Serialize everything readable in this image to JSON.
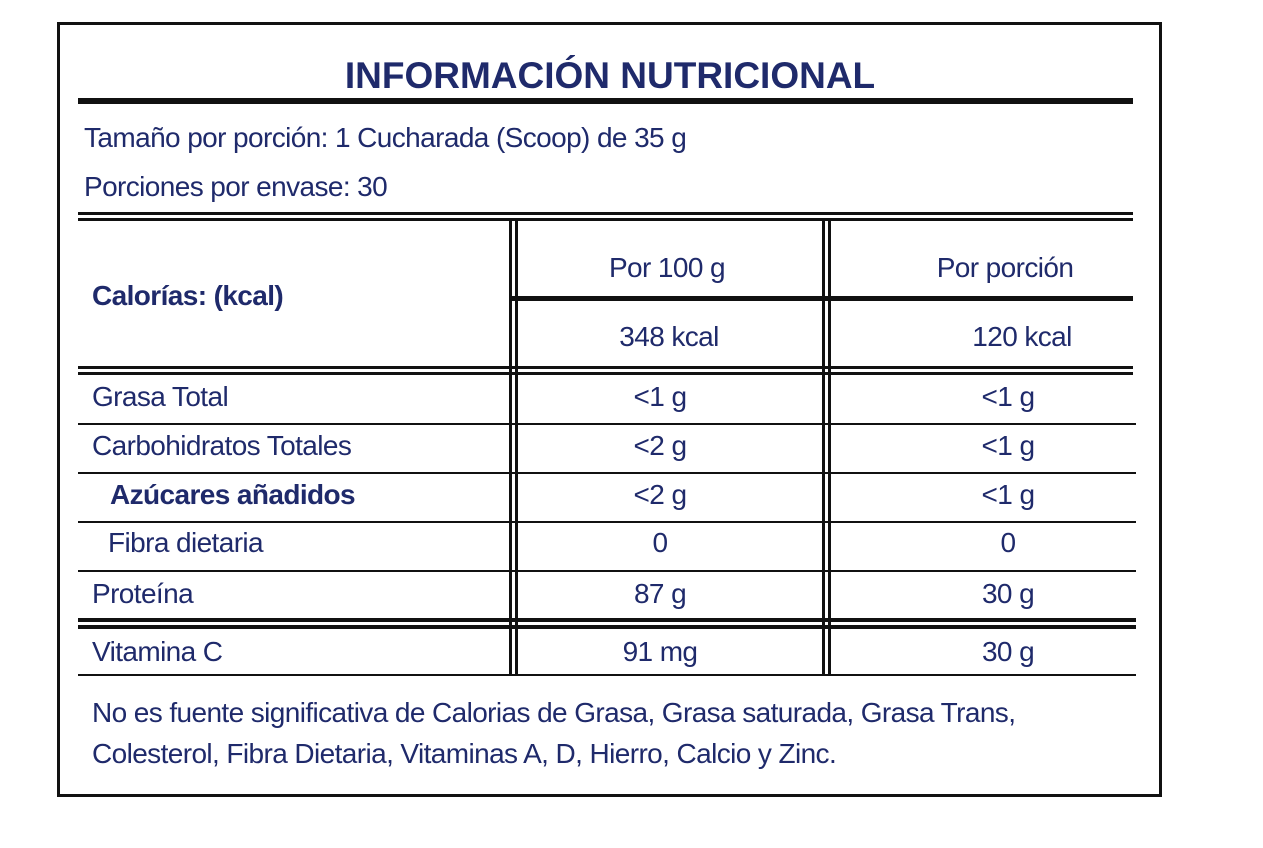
{
  "title": "INFORMACIÓN NUTRICIONAL",
  "serving": [
    "Tamaño por porción: 1 Cucharada (Scoop) de 35 g",
    "Porciones por envase: 30"
  ],
  "calories": {
    "label": "Calorías: (kcal)",
    "headers": [
      "Por 100 g",
      "Por porción"
    ],
    "values": [
      "348 kcal",
      "120 kcal"
    ]
  },
  "table": {
    "rows": [
      [
        "Grasa Total",
        "<1 g",
        "<1 g"
      ],
      [
        "Carbohidratos Totales",
        "<2 g",
        "<1 g"
      ],
      [
        "Azúcares  añadidos",
        "<2 g",
        "<1 g"
      ],
      [
        "Fibra dietaria",
        "0",
        "0"
      ],
      [
        "Proteína",
        "87 g",
        "30 g"
      ],
      [
        "Vitamina C",
        "91 mg",
        "30 g"
      ]
    ]
  },
  "footnote": "No es fuente significativa de Calorias de Grasa, Grasa saturada, Grasa Trans, Colesterol, Fibra Dietaria, Vitaminas A, D, Hierro, Calcio y Zinc."
}
